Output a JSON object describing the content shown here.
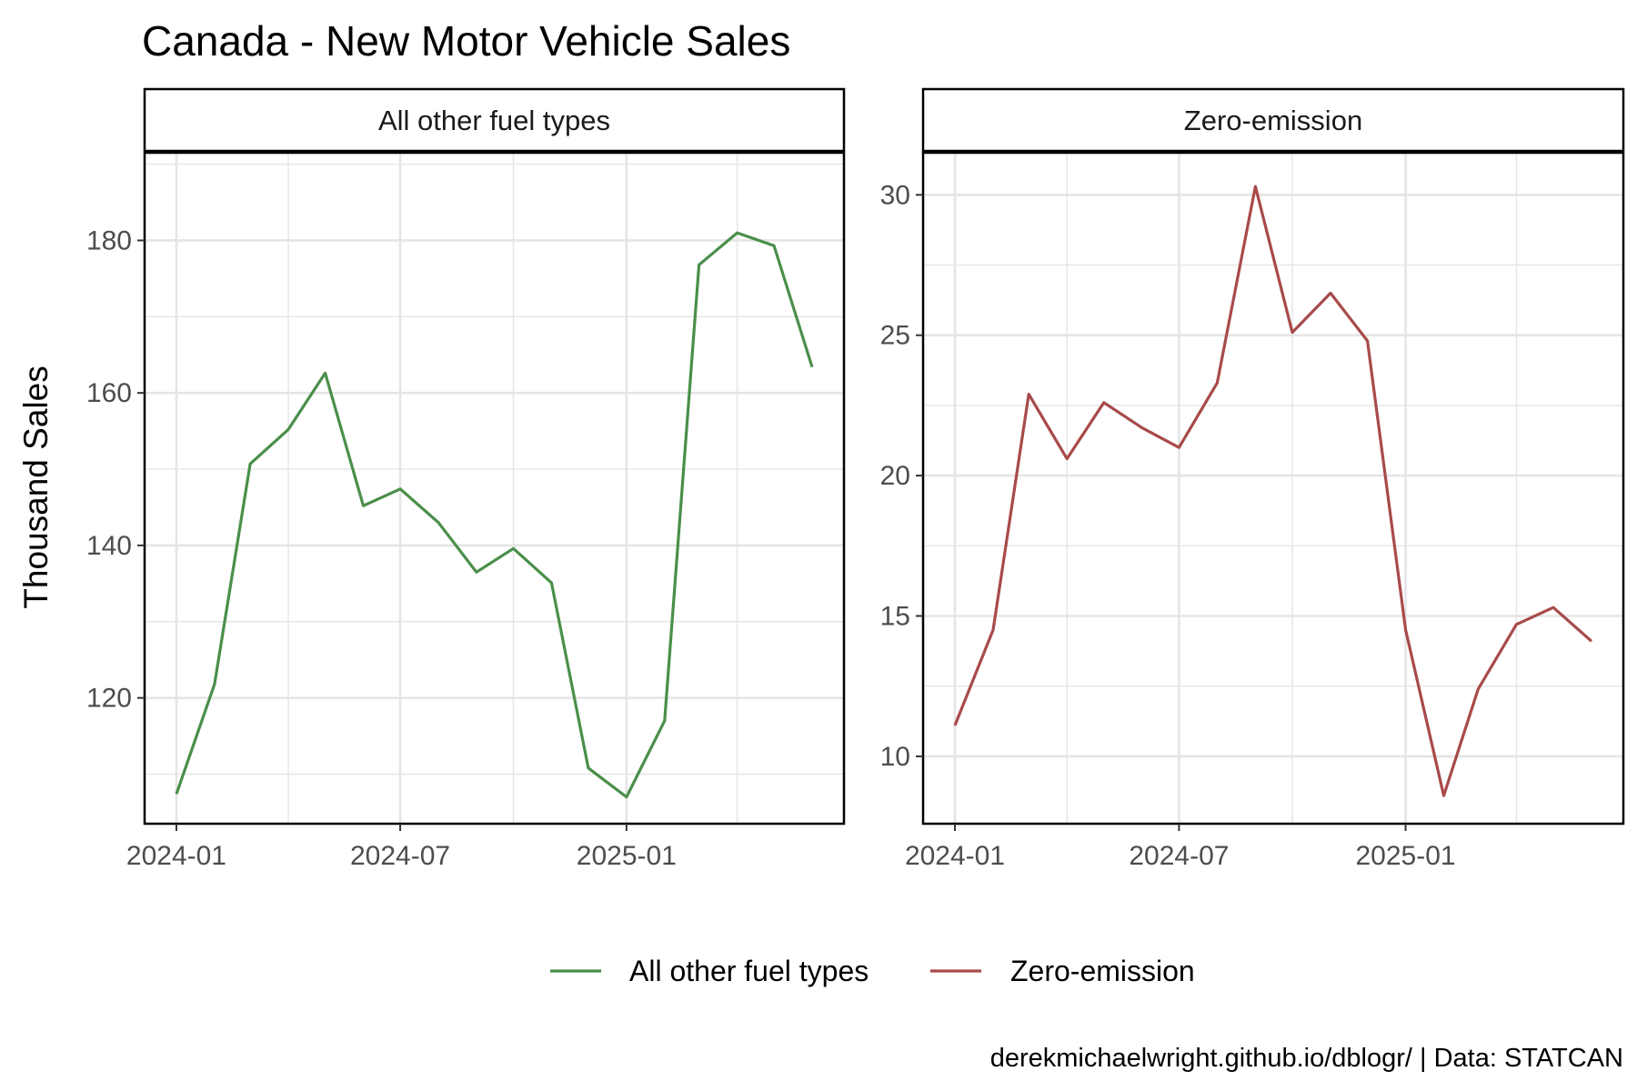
{
  "title": "Canada - New Motor Vehicle Sales",
  "caption": "derekmichaelwright.github.io/dblogr/ | Data: STATCAN",
  "chart_data": [
    {
      "type": "line",
      "facet": "All other fuel types",
      "xlabel": "",
      "ylabel": "Thousand Sales",
      "x": [
        "2024-01",
        "2024-02",
        "2024-03",
        "2024-04",
        "2024-05",
        "2024-06",
        "2024-07",
        "2024-08",
        "2024-09",
        "2024-10",
        "2024-11",
        "2024-12",
        "2025-01",
        "2025-02",
        "2025-03",
        "2025-04",
        "2025-05",
        "2025-06"
      ],
      "x_ticks": [
        "2024-01",
        "2024-07",
        "2025-01"
      ],
      "y_ticks": [
        120,
        140,
        160,
        180
      ],
      "ylim": [
        103.5,
        191.5
      ],
      "grid": true,
      "series": [
        {
          "name": "All other fuel types",
          "color": "#4a8f4a",
          "values": [
            107.4,
            121.8,
            150.7,
            155.2,
            162.6,
            145.2,
            147.4,
            143.0,
            136.5,
            139.6,
            135.1,
            110.8,
            107.0,
            117.0,
            176.8,
            181.0,
            179.3,
            163.4
          ]
        }
      ]
    },
    {
      "type": "line",
      "facet": "Zero-emission",
      "xlabel": "",
      "ylabel": "Thousand Sales",
      "x": [
        "2024-01",
        "2024-02",
        "2024-03",
        "2024-04",
        "2024-05",
        "2024-06",
        "2024-07",
        "2024-08",
        "2024-09",
        "2024-10",
        "2024-11",
        "2024-12",
        "2025-01",
        "2025-02",
        "2025-03",
        "2025-04",
        "2025-05",
        "2025-06"
      ],
      "x_ticks": [
        "2024-01",
        "2024-07",
        "2025-01"
      ],
      "y_ticks": [
        10,
        15,
        20,
        25,
        30
      ],
      "ylim": [
        7.6,
        31.5
      ],
      "grid": true,
      "series": [
        {
          "name": "Zero-emission",
          "color": "#a84a4a",
          "values": [
            11.1,
            14.5,
            22.9,
            20.6,
            22.6,
            21.7,
            21.0,
            23.3,
            30.3,
            25.1,
            26.5,
            24.8,
            14.5,
            8.6,
            12.4,
            14.7,
            15.3,
            14.1
          ]
        }
      ]
    }
  ],
  "legend": {
    "position": "bottom",
    "items": [
      {
        "label": "All other fuel types",
        "color": "#4a8f4a"
      },
      {
        "label": "Zero-emission",
        "color": "#a84a4a"
      }
    ]
  },
  "colors": {
    "grid": "#e5e5e5",
    "panel_border": "#000000",
    "strip_bg": "#ffffff"
  }
}
